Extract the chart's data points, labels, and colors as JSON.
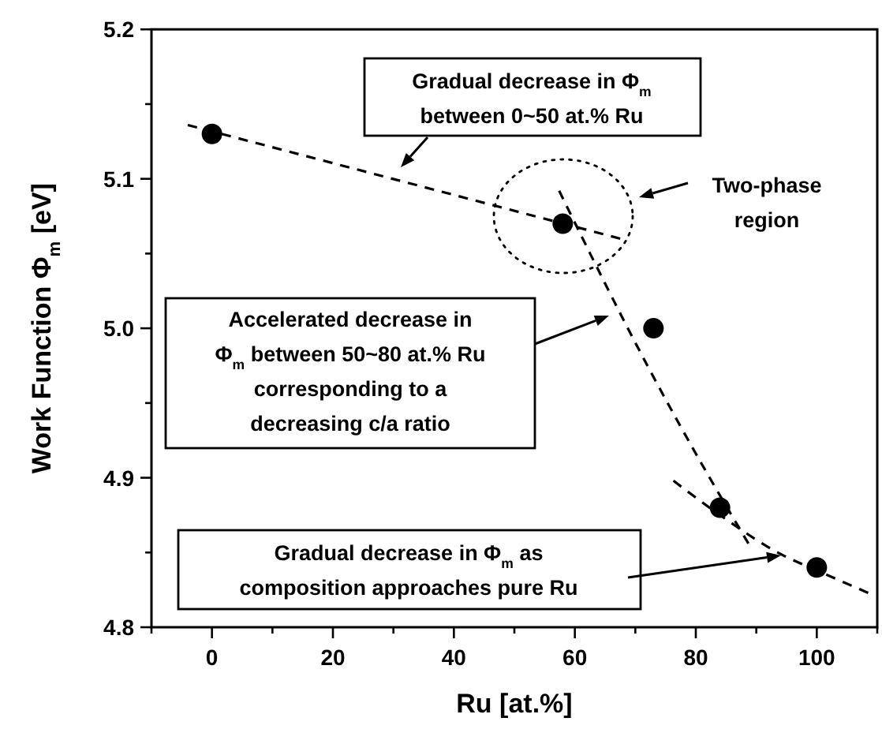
{
  "chart_data": {
    "type": "scatter",
    "xlabel": "Ru [at.%]",
    "ylabel": "Work Function Φ$_{m}$ [eV]",
    "xlim": [
      -10,
      110
    ],
    "ylim": [
      4.8,
      5.2
    ],
    "xticks": [
      {
        "value": -10,
        "label": null
      },
      0,
      {
        "value": 10,
        "label": null
      },
      20,
      {
        "value": 30,
        "label": null
      },
      40,
      {
        "value": 50,
        "label": null
      },
      60,
      {
        "value": 70,
        "label": null
      },
      80,
      {
        "value": 90,
        "label": null
      },
      100,
      {
        "value": 110,
        "label": null
      }
    ],
    "yticks": [
      4.8,
      {
        "value": 4.85,
        "label": null
      },
      4.9,
      {
        "value": 4.95,
        "label": null
      },
      {
        "value": 5.0,
        "label": "5.0"
      },
      {
        "value": 5.05,
        "label": null
      },
      5.1,
      {
        "value": 5.15,
        "label": null
      },
      5.2
    ],
    "series": [
      {
        "type": "scatter",
        "color": "#000000",
        "marker": "circle",
        "x": [
          0,
          58,
          73,
          84,
          100
        ],
        "values": [
          5.13,
          5.07,
          5.0,
          4.88,
          4.84
        ]
      },
      {
        "type": "line",
        "color": "#000000",
        "marker": "none",
        "line_style": "dashed",
        "x": [
          -4,
          67.5
        ],
        "values": [
          5.136,
          5.06
        ]
      },
      {
        "type": "line",
        "color": "#000000",
        "marker": "none",
        "line_style": "dashed",
        "x": [
          57.4,
          72,
          82,
          88.7
        ],
        "values": [
          5.092,
          4.975,
          4.902,
          4.856
        ]
      },
      {
        "type": "line",
        "color": "#000000",
        "marker": "none",
        "line_style": "dashed",
        "x": [
          76.3,
          84,
          94,
          100,
          108.5
        ],
        "values": [
          4.898,
          4.875,
          4.849,
          4.838,
          4.823
        ]
      }
    ],
    "annotations": [
      "Gradual decrease in Φ$_{m}$\nbetween 0~50 at.% Ru",
      "Two-phase\nregion",
      "Accelerated decrease in\nΦ$_{m}$ between 50~80 at.% Ru\ncorresponding to a\ndecreasing c/a ratio",
      "Gradual decrease in Φ$_{m}$ as\ncomposition approaches pure Ru"
    ]
  }
}
